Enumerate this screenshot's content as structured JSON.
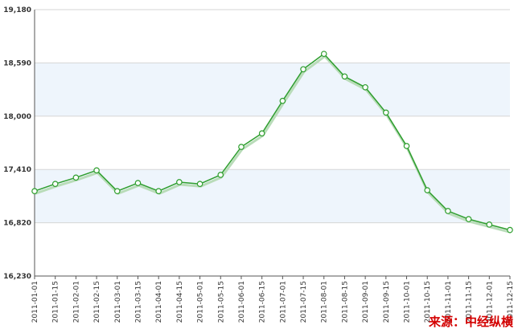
{
  "chart_data": {
    "type": "line",
    "title": "",
    "xlabel": "",
    "ylabel": "",
    "ylim": [
      16230,
      19180
    ],
    "yticks": [
      "19,180",
      "18,590",
      "18,000",
      "17,410",
      "16,820",
      "16,230"
    ],
    "ytick_values": [
      19180,
      18590,
      18000,
      17410,
      16820,
      16230
    ],
    "categories": [
      "2011-01-01",
      "2011-01-15",
      "2011-02-01",
      "2011-02-15",
      "2011-03-01",
      "2011-03-15",
      "2011-04-01",
      "2011-04-15",
      "2011-05-01",
      "2011-05-15",
      "2011-06-01",
      "2011-06-15",
      "2011-07-01",
      "2011-07-15",
      "2011-08-01",
      "2011-08-15",
      "2011-09-01",
      "2011-09-15",
      "2011-10-01",
      "2011-10-15",
      "2011-11-01",
      "2011-11-15",
      "2011-12-01",
      "2011-12-15"
    ],
    "series": [
      {
        "values": [
          17170,
          17250,
          17320,
          17400,
          17170,
          17260,
          17170,
          17270,
          17250,
          17350,
          17660,
          17810,
          18170,
          18520,
          18690,
          18440,
          18320,
          18040,
          17670,
          17180,
          16950,
          16860,
          16800,
          16740
        ],
        "color": "#2e9e2e"
      }
    ],
    "band_color": "#eef5fc",
    "grid": true,
    "legend": "none"
  },
  "source_text": "来源：中经纵横"
}
